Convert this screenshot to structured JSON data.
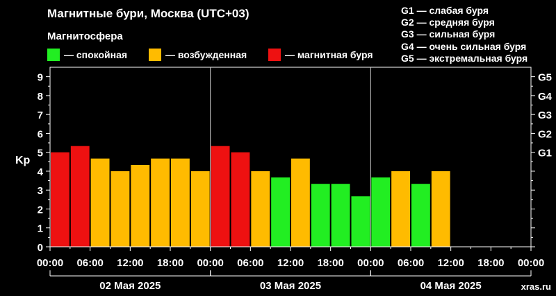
{
  "header": {
    "title": "Магнитные бури, Москва (UTC+03)",
    "subtitle": "Магнитосфера"
  },
  "legend": [
    {
      "label": "— спокойная",
      "color": "#22ee22"
    },
    {
      "label": "— возбужденная",
      "color": "#ffbb00"
    },
    {
      "label": "— магнитная буря",
      "color": "#ee1111"
    }
  ],
  "gscale_legend": [
    "G1 — слабая буря",
    "G2 — средняя буря",
    "G3 — сильная буря",
    "G4 — очень сильная буря",
    "G5 — экстремальная буря"
  ],
  "watermark": "xras.ru",
  "chart_data": {
    "type": "bar",
    "ylabel": "Kp",
    "ylim": [
      0,
      9.5
    ],
    "yticks": [
      "0",
      "1",
      "2",
      "3",
      "4",
      "5",
      "6",
      "7",
      "8",
      "9"
    ],
    "g_ticks": [
      {
        "label": "G1",
        "value": 5
      },
      {
        "label": "G2",
        "value": 6
      },
      {
        "label": "G3",
        "value": 7
      },
      {
        "label": "G4",
        "value": 8
      },
      {
        "label": "G5",
        "value": 9
      }
    ],
    "x_tick_labels": [
      "00:00",
      "06:00",
      "12:00",
      "18:00",
      "00:00",
      "06:00",
      "12:00",
      "18:00",
      "00:00",
      "06:00",
      "12:00",
      "18:00",
      "00:00"
    ],
    "days": [
      "02 Мая 2025",
      "03 Мая 2025",
      "04 Мая 2025"
    ],
    "slots_total": 24,
    "colors": {
      "quiet": "#22ee22",
      "active": "#ffbb00",
      "storm": "#ee1111"
    },
    "values": [
      5.0,
      5.33,
      4.67,
      4.0,
      4.33,
      4.67,
      4.67,
      4.0,
      5.33,
      5.0,
      4.0,
      3.67,
      4.67,
      3.33,
      3.33,
      2.67,
      3.67,
      4.0,
      3.33,
      4.0
    ],
    "levels": [
      "storm",
      "storm",
      "active",
      "active",
      "active",
      "active",
      "active",
      "active",
      "storm",
      "storm",
      "active",
      "quiet",
      "active",
      "quiet",
      "quiet",
      "quiet",
      "quiet",
      "active",
      "quiet",
      "active"
    ]
  }
}
